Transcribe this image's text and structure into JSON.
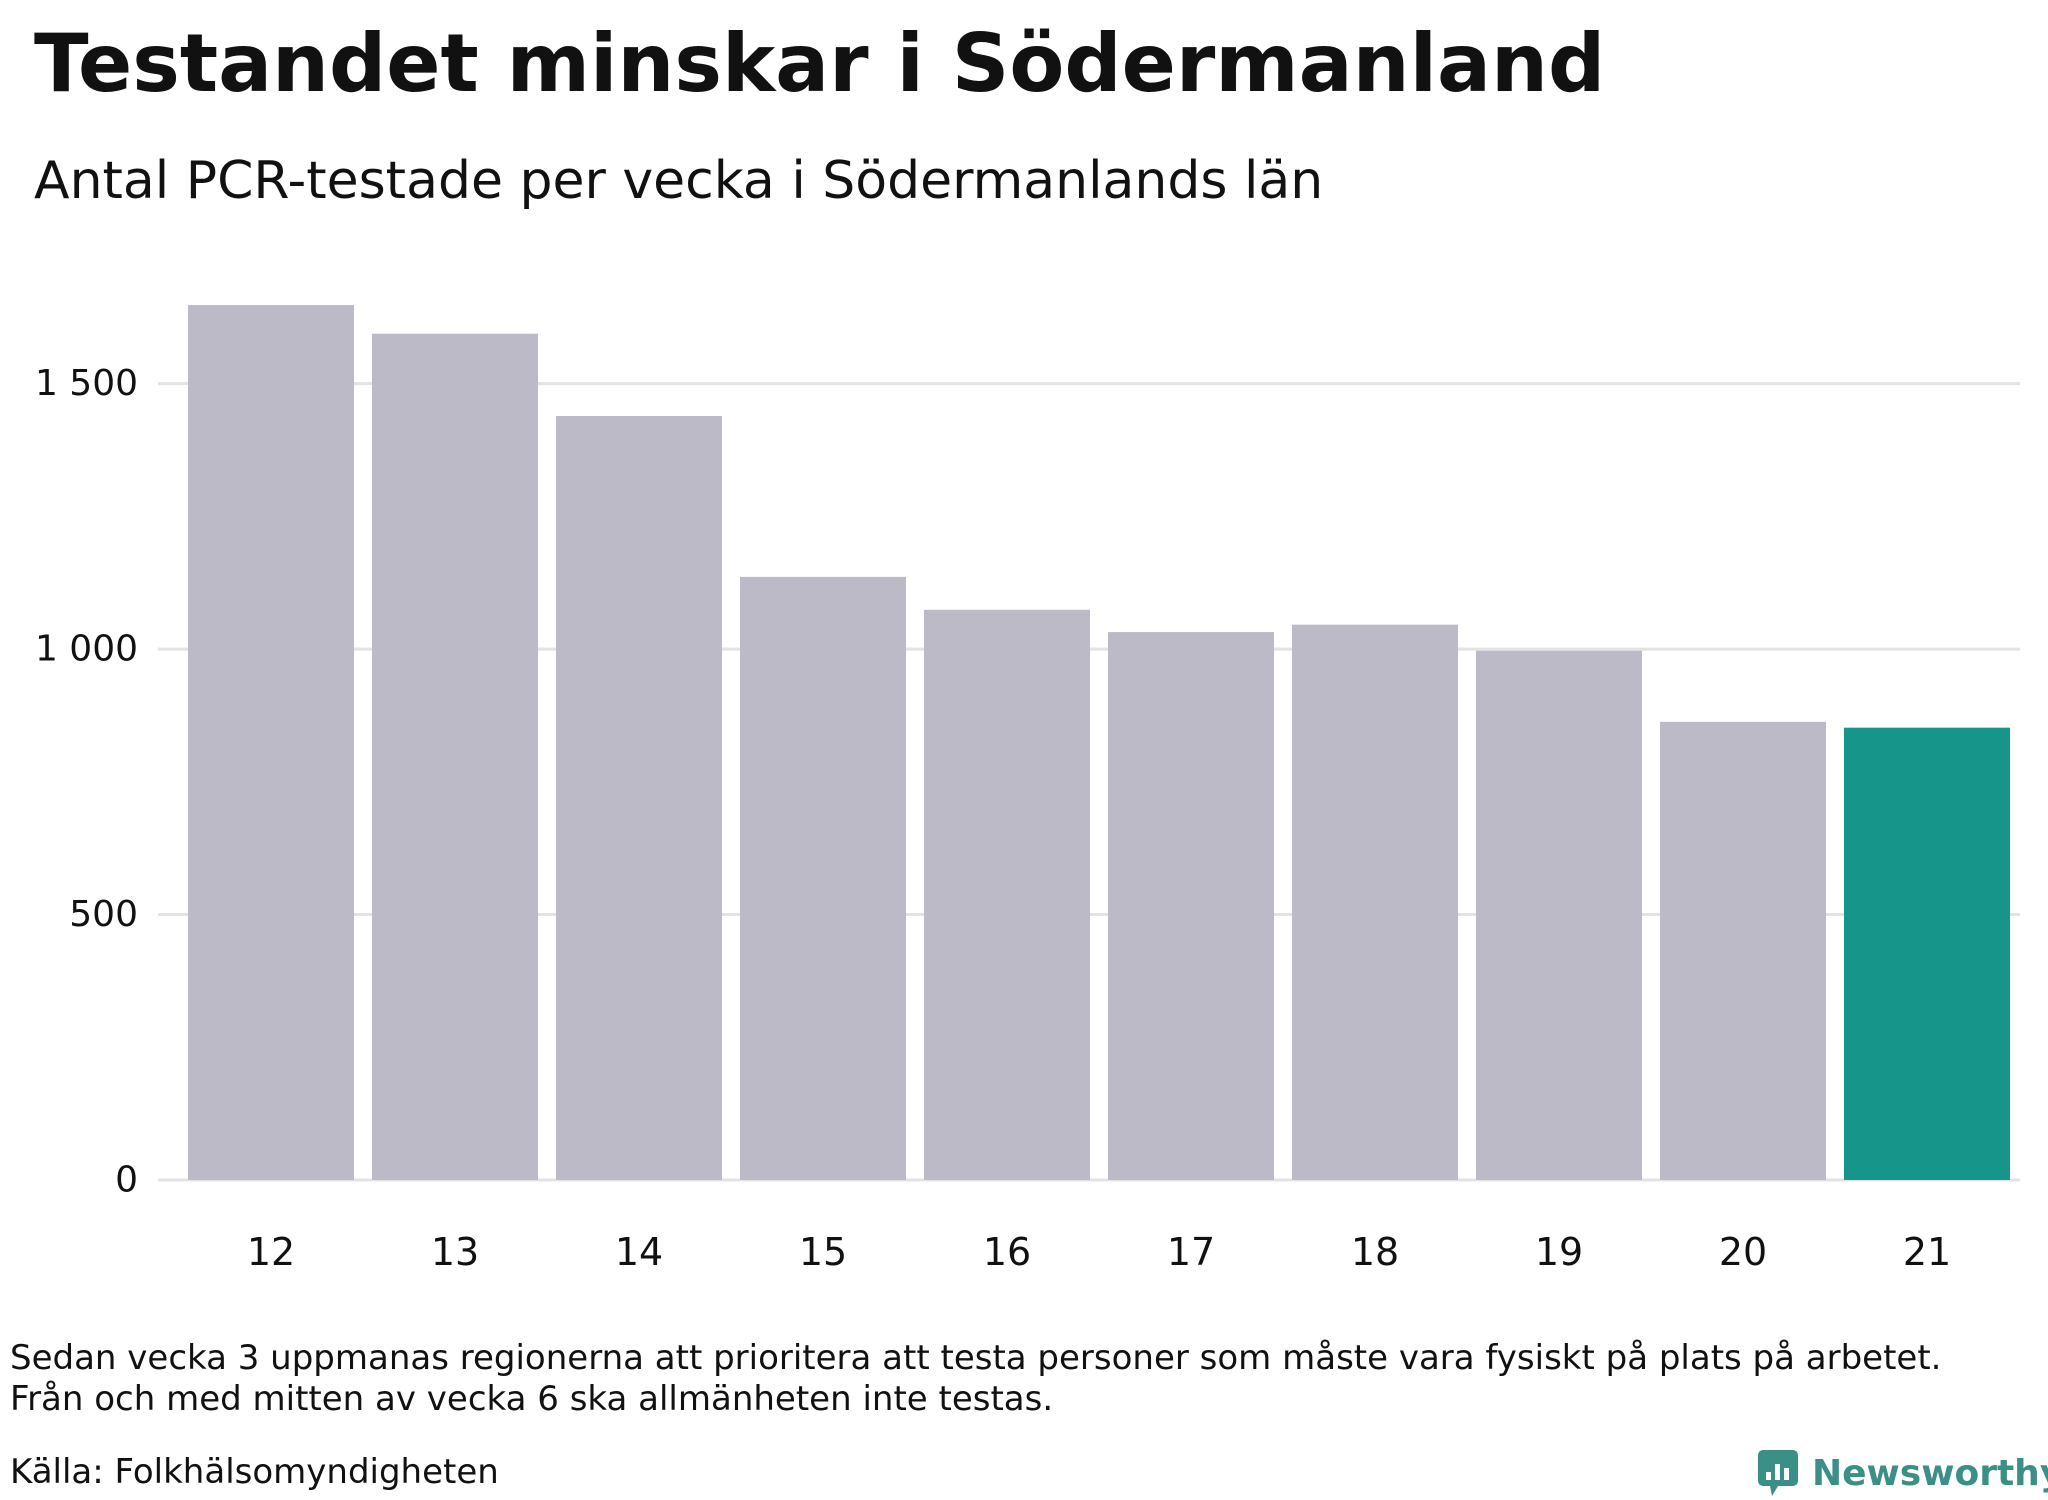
{
  "title": "Testandet minskar i Södermanland",
  "subtitle": "Antal PCR-testade per vecka i Södermanlands län",
  "footer": {
    "note_line1": "Sedan vecka 3 uppmanas regionerna att prioritera att testa personer som måste vara fysiskt på plats på arbetet.",
    "note_line2": "Från och med mitten av vecka 6 ska allmänheten inte testas.",
    "source": "Källa: Folkhälsomyndigheten",
    "brand": "Newsworthy",
    "brand_icon": "newsworthy-logo-icon"
  },
  "colors": {
    "bar": "#bcbac7",
    "highlight": "#16958a",
    "grid": "#e3e3e3",
    "brand": "#3a8f86"
  },
  "chart_data": {
    "type": "bar",
    "title": "Testandet minskar i Södermanland",
    "subtitle": "Antal PCR-testade per vecka i Södermanlands län",
    "xlabel": "",
    "ylabel": "",
    "categories": [
      "12",
      "13",
      "14",
      "15",
      "16",
      "17",
      "18",
      "19",
      "20",
      "21"
    ],
    "values": [
      1648,
      1594,
      1439,
      1136,
      1074,
      1032,
      1046,
      997,
      863,
      852
    ],
    "highlight_index": 9,
    "ylim": [
      0,
      1650
    ],
    "yticks": [
      0,
      500,
      1000,
      1500
    ],
    "ytick_labels": [
      "0",
      "500",
      "1 000",
      "1 500"
    ],
    "grid": true,
    "legend": "none"
  }
}
